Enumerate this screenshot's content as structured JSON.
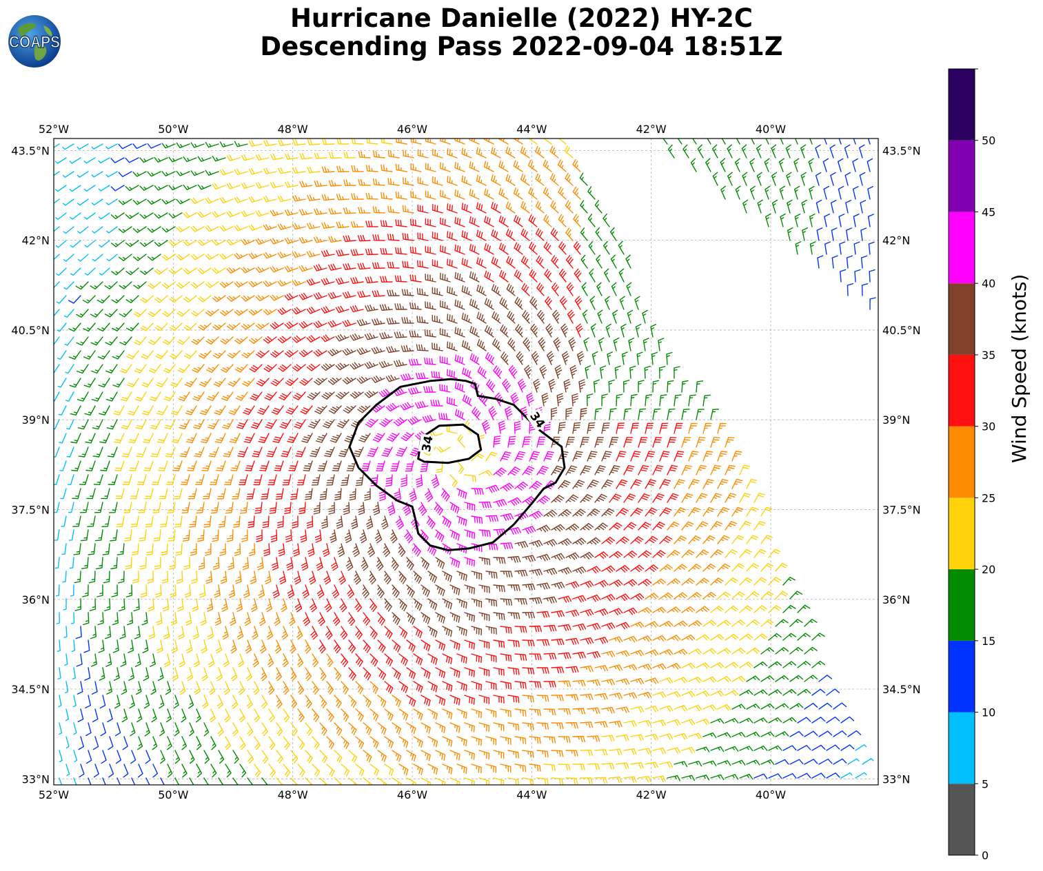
{
  "title_line1": "Hurricane Danielle (2022) HY-2C",
  "title_line2": "Descending Pass 2022-09-04 18:51Z",
  "logo_text": "COAPS",
  "map": {
    "lon_range": [
      -52.0,
      -38.2
    ],
    "lat_range": [
      32.9,
      43.7
    ],
    "lon_ticks": [
      {
        "value": -52,
        "label": "52°W"
      },
      {
        "value": -50,
        "label": "50°W"
      },
      {
        "value": -48,
        "label": "48°W"
      },
      {
        "value": -46,
        "label": "46°W"
      },
      {
        "value": -44,
        "label": "44°W"
      },
      {
        "value": -42,
        "label": "42°W"
      },
      {
        "value": -40,
        "label": "40°W"
      }
    ],
    "lat_ticks": [
      {
        "value": 43.5,
        "label": "43.5°N"
      },
      {
        "value": 42.0,
        "label": "42°N"
      },
      {
        "value": 40.5,
        "label": "40.5°N"
      },
      {
        "value": 39.0,
        "label": "39°N"
      },
      {
        "value": 37.5,
        "label": "37.5°N"
      },
      {
        "value": 36.0,
        "label": "36°N"
      },
      {
        "value": 34.5,
        "label": "34.5°N"
      },
      {
        "value": 33.0,
        "label": "33°N"
      }
    ],
    "gridlines": true,
    "storm_center": {
      "lon": -45.2,
      "lat": 38.4
    },
    "wind_field": "cyclonic wind barbs, peak ~45 kt near center, weakening outward",
    "contour": {
      "level": 34,
      "label": "34",
      "outer": [
        [
          -45.1,
          39.65
        ],
        [
          -44.95,
          39.6
        ],
        [
          -44.9,
          39.4
        ],
        [
          -44.6,
          39.35
        ],
        [
          -44.3,
          39.25
        ],
        [
          -44.1,
          39.05
        ],
        [
          -43.9,
          38.85
        ],
        [
          -43.7,
          38.7
        ],
        [
          -43.5,
          38.55
        ],
        [
          -43.45,
          38.2
        ],
        [
          -43.6,
          37.95
        ],
        [
          -43.8,
          37.85
        ],
        [
          -44.0,
          37.6
        ],
        [
          -44.3,
          37.25
        ],
        [
          -44.65,
          36.95
        ],
        [
          -45.05,
          36.85
        ],
        [
          -45.4,
          36.82
        ],
        [
          -45.7,
          36.9
        ],
        [
          -45.9,
          37.1
        ],
        [
          -45.95,
          37.35
        ],
        [
          -46.0,
          37.55
        ],
        [
          -46.25,
          37.65
        ],
        [
          -46.6,
          37.9
        ],
        [
          -46.9,
          38.2
        ],
        [
          -47.05,
          38.55
        ],
        [
          -46.9,
          38.95
        ],
        [
          -46.6,
          39.25
        ],
        [
          -46.2,
          39.55
        ],
        [
          -45.7,
          39.65
        ],
        [
          -45.35,
          39.68
        ],
        [
          -45.1,
          39.65
        ]
      ],
      "inner": [
        [
          -45.9,
          38.35
        ],
        [
          -45.85,
          38.7
        ],
        [
          -45.55,
          38.9
        ],
        [
          -45.15,
          38.92
        ],
        [
          -44.9,
          38.75
        ],
        [
          -44.85,
          38.5
        ],
        [
          -45.05,
          38.35
        ],
        [
          -45.4,
          38.28
        ],
        [
          -45.8,
          38.3
        ],
        [
          -45.9,
          38.35
        ]
      ],
      "label_positions": [
        {
          "lon": -43.9,
          "lat": 39.0,
          "angle": 55
        },
        {
          "lon": -45.75,
          "lat": 38.6,
          "angle": -80
        }
      ]
    }
  },
  "colorbar": {
    "label": "Wind Speed (knots)",
    "bins": [
      {
        "from": 0,
        "to": 5,
        "color": "#555555"
      },
      {
        "from": 5,
        "to": 10,
        "color": "#00bfff"
      },
      {
        "from": 10,
        "to": 15,
        "color": "#0033ff"
      },
      {
        "from": 15,
        "to": 20,
        "color": "#008c00"
      },
      {
        "from": 20,
        "to": 25,
        "color": "#ffd20a"
      },
      {
        "from": 25,
        "to": 30,
        "color": "#ff8c00"
      },
      {
        "from": 30,
        "to": 35,
        "color": "#ff1010"
      },
      {
        "from": 35,
        "to": 40,
        "color": "#80402a"
      },
      {
        "from": 40,
        "to": 45,
        "color": "#ff00ff"
      },
      {
        "from": 45,
        "to": 50,
        "color": "#8000b0"
      },
      {
        "from": 50,
        "to": 55,
        "color": "#2b0060"
      }
    ],
    "ticks": [
      0,
      5,
      10,
      15,
      20,
      25,
      30,
      35,
      40,
      45,
      50
    ]
  }
}
